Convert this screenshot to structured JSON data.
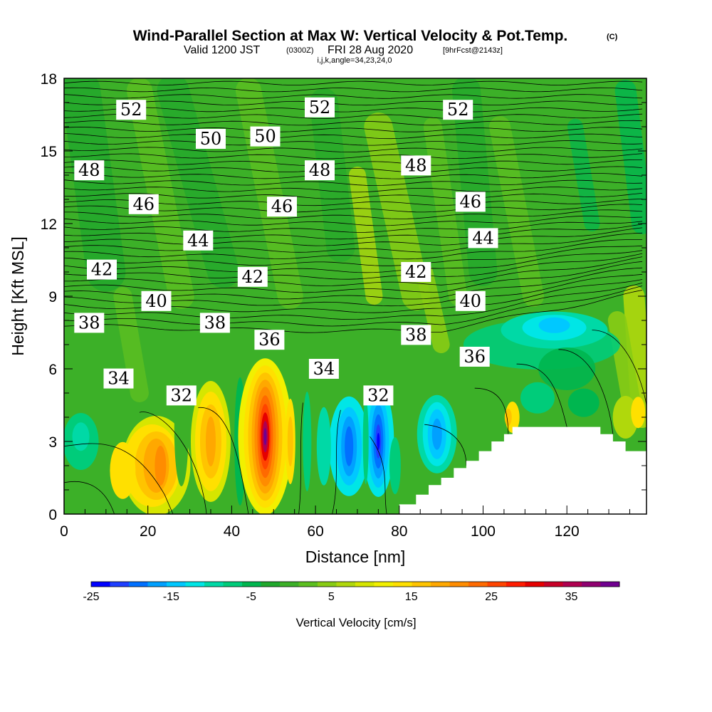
{
  "title": {
    "main": "Wind-Parallel Section at Max W: Vertical Velocity & Pot.Temp.",
    "copyright": "(C)",
    "valid_prefix": "Valid 1200 JST",
    "valid_utc": "(0300Z)",
    "valid_date": "FRI 28 Aug 2020",
    "forecast": "[9hrFcst@2143z]",
    "indices": "i,j,k,angle=34,23,24,0"
  },
  "chart_data": {
    "type": "heatmap",
    "title": "Wind-Parallel Section at Max W: Vertical Velocity & Pot.Temp.",
    "xlabel": "Distance [nm]",
    "ylabel": "Height [Kft MSL]",
    "xlim": [
      0,
      139
    ],
    "ylim": [
      0,
      18
    ],
    "x_ticks": [
      0,
      20,
      40,
      60,
      80,
      100,
      120
    ],
    "y_ticks": [
      0,
      3,
      6,
      9,
      12,
      15,
      18
    ],
    "grid": false,
    "colorbar": {
      "title": "Vertical Velocity [cm/s]",
      "range": [
        -25,
        41
      ],
      "tick_values": [
        -25,
        -15,
        -5,
        5,
        15,
        25,
        35
      ],
      "colors": [
        "#0000ff",
        "#1f3fff",
        "#0070ff",
        "#00a0ff",
        "#00c8ff",
        "#00e6e6",
        "#00d9a6",
        "#00cc7a",
        "#00b64f",
        "#20a82c",
        "#3cb028",
        "#5cbf20",
        "#88cc14",
        "#b0d80c",
        "#d6e600",
        "#f2f000",
        "#ffe000",
        "#ffc400",
        "#ffa800",
        "#ff8c00",
        "#ff6a00",
        "#ff4400",
        "#ff1c00",
        "#e60000",
        "#c80028",
        "#b00050",
        "#900070",
        "#700090"
      ]
    },
    "velocity_features": [
      {
        "x": 22,
        "z": 2.0,
        "w": 14,
        "type": "updraft"
      },
      {
        "x": 35,
        "z": 3.0,
        "w": 14,
        "type": "updraft"
      },
      {
        "x": 48,
        "z": 3.2,
        "w": 41,
        "type": "updraft"
      },
      {
        "x": 68,
        "z": 3.0,
        "w": -22,
        "type": "downdraft"
      },
      {
        "x": 75,
        "z": 3.0,
        "w": -25,
        "type": "downdraft"
      },
      {
        "x": 90,
        "z": 3.2,
        "w": -15,
        "type": "downdraft"
      },
      {
        "x": 117,
        "z": 7.8,
        "w": -15,
        "type": "downdraft"
      }
    ],
    "terrain_outline": [
      [
        80,
        0
      ],
      [
        80,
        0.4
      ],
      [
        84,
        0.4
      ],
      [
        84,
        0.8
      ],
      [
        87,
        0.8
      ],
      [
        87,
        1.2
      ],
      [
        90,
        1.2
      ],
      [
        90,
        1.5
      ],
      [
        93,
        1.5
      ],
      [
        93,
        1.9
      ],
      [
        96,
        1.9
      ],
      [
        96,
        2.2
      ],
      [
        99,
        2.2
      ],
      [
        99,
        2.6
      ],
      [
        102,
        2.6
      ],
      [
        102,
        3.0
      ],
      [
        105,
        3.0
      ],
      [
        105,
        3.3
      ],
      [
        107,
        3.3
      ],
      [
        107,
        3.6
      ],
      [
        128,
        3.6
      ],
      [
        128,
        3.3
      ],
      [
        131,
        3.3
      ],
      [
        131,
        3.0
      ],
      [
        134,
        3.0
      ],
      [
        134,
        2.6
      ],
      [
        139,
        2.6
      ],
      [
        139,
        0
      ]
    ],
    "contour_labels": [
      {
        "text": "52",
        "x": 16,
        "z": 16.7
      },
      {
        "text": "52",
        "x": 61,
        "z": 16.8
      },
      {
        "text": "52",
        "x": 94,
        "z": 16.7
      },
      {
        "text": "50",
        "x": 35,
        "z": 15.5
      },
      {
        "text": "50",
        "x": 48,
        "z": 15.6
      },
      {
        "text": "48",
        "x": 6,
        "z": 14.2
      },
      {
        "text": "48",
        "x": 61,
        "z": 14.2
      },
      {
        "text": "48",
        "x": 84,
        "z": 14.4
      },
      {
        "text": "46",
        "x": 19,
        "z": 12.8
      },
      {
        "text": "46",
        "x": 52,
        "z": 12.7
      },
      {
        "text": "46",
        "x": 97,
        "z": 12.9
      },
      {
        "text": "44",
        "x": 32,
        "z": 11.3
      },
      {
        "text": "44",
        "x": 100,
        "z": 11.4
      },
      {
        "text": "42",
        "x": 9,
        "z": 10.1
      },
      {
        "text": "42",
        "x": 45,
        "z": 9.8
      },
      {
        "text": "42",
        "x": 84,
        "z": 10.0
      },
      {
        "text": "40",
        "x": 22,
        "z": 8.8
      },
      {
        "text": "40",
        "x": 97,
        "z": 8.8
      },
      {
        "text": "38",
        "x": 6,
        "z": 7.9
      },
      {
        "text": "38",
        "x": 36,
        "z": 7.9
      },
      {
        "text": "38",
        "x": 84,
        "z": 7.4
      },
      {
        "text": "36",
        "x": 49,
        "z": 7.2
      },
      {
        "text": "36",
        "x": 98,
        "z": 6.5
      },
      {
        "text": "34",
        "x": 13,
        "z": 5.6
      },
      {
        "text": "34",
        "x": 62,
        "z": 6.0
      },
      {
        "text": "32",
        "x": 28,
        "z": 4.9
      },
      {
        "text": "32",
        "x": 75,
        "z": 4.9
      }
    ]
  }
}
